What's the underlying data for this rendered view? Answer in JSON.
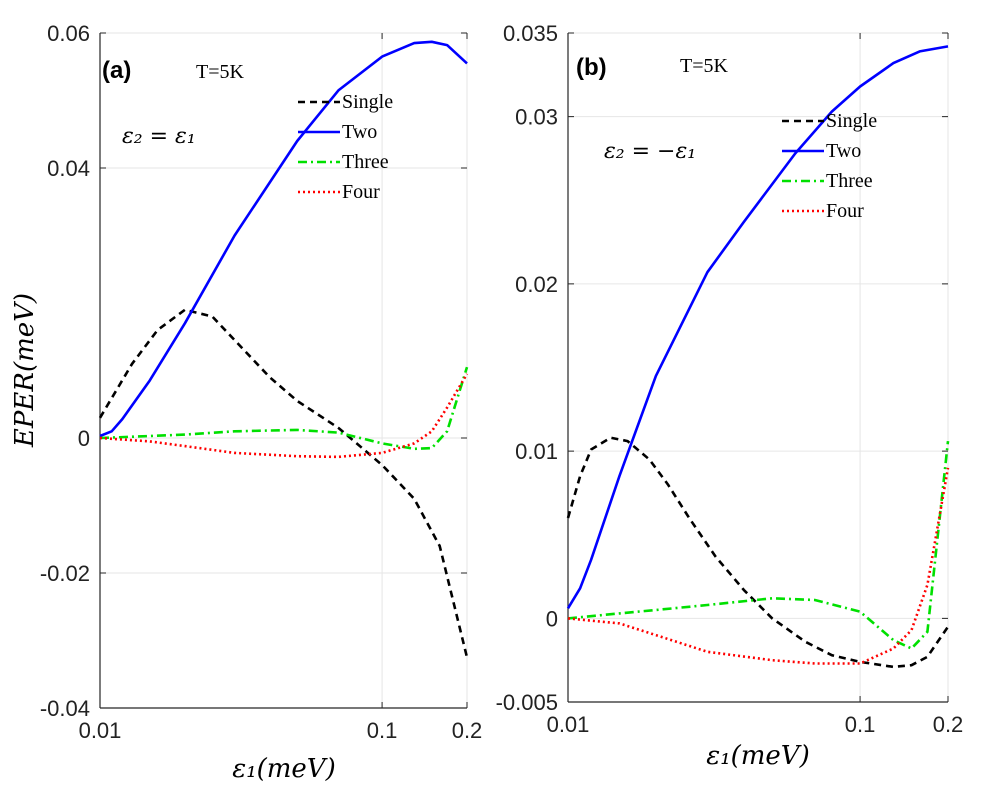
{
  "chart_data": [
    {
      "type": "line",
      "panel_label": "(a)",
      "temperature_label": "T=5K",
      "condition_label": "ε₂ = ε₁",
      "xscale": "log",
      "xlim": [
        0.01,
        0.2
      ],
      "ylim": [
        -0.04,
        0.06
      ],
      "xticks": [
        0.01,
        0.1,
        0.2
      ],
      "xtick_labels": [
        "0.01",
        "0.1",
        "0.2"
      ],
      "yticks": [
        -0.04,
        -0.02,
        0,
        0.04,
        0.06
      ],
      "ytick_labels": [
        "-0.04",
        "-0.02",
        "0",
        "0.04",
        "0.06"
      ],
      "xlabel": "ε₁(meV)",
      "ylabel": "EPER(meV)",
      "legend_position": "top-right",
      "series": [
        {
          "name": "Single",
          "color": "#000000",
          "style": "dashed",
          "x": [
            0.01,
            0.013,
            0.016,
            0.02,
            0.025,
            0.03,
            0.04,
            0.05,
            0.07,
            0.1,
            0.13,
            0.16,
            0.2
          ],
          "y": [
            0.003,
            0.011,
            0.016,
            0.019,
            0.018,
            0.0145,
            0.009,
            0.0055,
            0.0015,
            -0.004,
            -0.009,
            -0.016,
            -0.0325
          ]
        },
        {
          "name": "Two",
          "color": "#0000ff",
          "style": "solid",
          "x": [
            0.01,
            0.011,
            0.012,
            0.015,
            0.02,
            0.03,
            0.05,
            0.07,
            0.1,
            0.13,
            0.15,
            0.17,
            0.2
          ],
          "y": [
            0.0003,
            0.001,
            0.0028,
            0.0085,
            0.017,
            0.03,
            0.044,
            0.0515,
            0.0565,
            0.0585,
            0.0587,
            0.0582,
            0.0555
          ]
        },
        {
          "name": "Three",
          "color": "#00e000",
          "style": "dashdot",
          "x": [
            0.01,
            0.02,
            0.03,
            0.05,
            0.07,
            0.1,
            0.13,
            0.15,
            0.17,
            0.2
          ],
          "y": [
            0.0,
            0.0005,
            0.001,
            0.0012,
            0.0008,
            -0.0008,
            -0.0016,
            -0.0015,
            0.001,
            0.0105
          ]
        },
        {
          "name": "Four",
          "color": "#ff0000",
          "style": "dotted",
          "x": [
            0.01,
            0.015,
            0.02,
            0.03,
            0.05,
            0.07,
            0.1,
            0.13,
            0.15,
            0.17,
            0.2
          ],
          "y": [
            0.0,
            -0.0005,
            -0.0012,
            -0.0022,
            -0.0027,
            -0.0028,
            -0.0022,
            -0.0008,
            0.001,
            0.0045,
            0.0095
          ]
        }
      ]
    },
    {
      "type": "line",
      "panel_label": "(b)",
      "temperature_label": "T=5K",
      "condition_label": "ε₂ = −ε₁",
      "xscale": "log",
      "xlim": [
        0.01,
        0.2
      ],
      "ylim": [
        -0.005,
        0.035
      ],
      "xticks": [
        0.01,
        0.1,
        0.2
      ],
      "xtick_labels": [
        "0.01",
        "0.1",
        "0.2"
      ],
      "yticks": [
        -0.005,
        0,
        0.01,
        0.02,
        0.03,
        0.035
      ],
      "ytick_labels": [
        "-0.005",
        "0",
        "0.01",
        "0.02",
        "0.03",
        "0.035"
      ],
      "xlabel": "ε₁(meV)",
      "ylabel": "",
      "legend_position": "top-right",
      "series": [
        {
          "name": "Single",
          "color": "#000000",
          "style": "dashed",
          "x": [
            0.01,
            0.011,
            0.012,
            0.014,
            0.016,
            0.019,
            0.022,
            0.026,
            0.032,
            0.04,
            0.05,
            0.065,
            0.08,
            0.1,
            0.13,
            0.15,
            0.17,
            0.2
          ],
          "y": [
            0.006,
            0.0085,
            0.0101,
            0.0108,
            0.0106,
            0.0095,
            0.008,
            0.006,
            0.0037,
            0.0017,
            0.0,
            -0.0014,
            -0.0022,
            -0.0026,
            -0.0029,
            -0.0028,
            -0.0023,
            -0.0005
          ]
        },
        {
          "name": "Two",
          "color": "#0000ff",
          "style": "solid",
          "x": [
            0.01,
            0.011,
            0.012,
            0.015,
            0.02,
            0.03,
            0.04,
            0.06,
            0.08,
            0.1,
            0.13,
            0.16,
            0.2
          ],
          "y": [
            0.0006,
            0.0018,
            0.0035,
            0.0085,
            0.0145,
            0.0207,
            0.0237,
            0.0278,
            0.0303,
            0.0318,
            0.0332,
            0.0339,
            0.0342
          ]
        },
        {
          "name": "Three",
          "color": "#00e000",
          "style": "dashdot",
          "x": [
            0.01,
            0.015,
            0.02,
            0.03,
            0.05,
            0.07,
            0.1,
            0.13,
            0.15,
            0.17,
            0.2
          ],
          "y": [
            0.0,
            0.0003,
            0.0005,
            0.0008,
            0.0012,
            0.0011,
            0.0004,
            -0.0013,
            -0.0018,
            -0.0008,
            0.0106
          ]
        },
        {
          "name": "Four",
          "color": "#ff0000",
          "style": "dotted",
          "x": [
            0.01,
            0.015,
            0.02,
            0.03,
            0.05,
            0.07,
            0.1,
            0.13,
            0.15,
            0.17,
            0.2
          ],
          "y": [
            0.0,
            -0.0003,
            -0.001,
            -0.002,
            -0.0025,
            -0.0027,
            -0.0027,
            -0.0018,
            -0.0007,
            0.002,
            0.009
          ]
        }
      ]
    }
  ]
}
